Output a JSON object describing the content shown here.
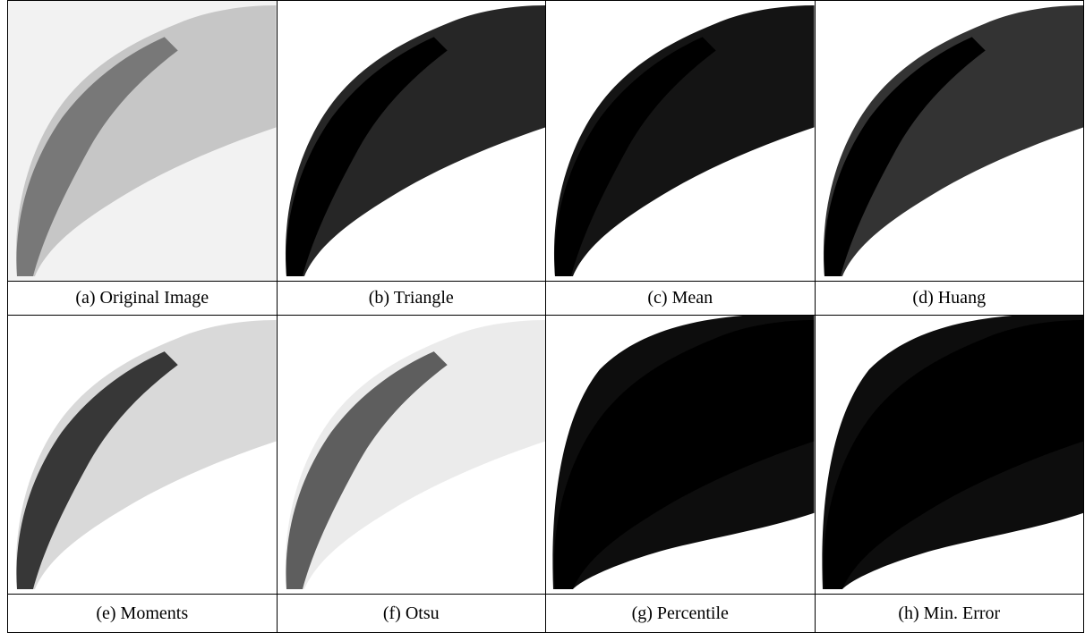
{
  "panels": [
    {
      "caption": "(a) Original Image"
    },
    {
      "caption": "(b) Triangle"
    },
    {
      "caption": "(c) Mean"
    },
    {
      "caption": "(d) Huang"
    },
    {
      "caption": "(e) Moments"
    },
    {
      "caption": "(f) Otsu"
    },
    {
      "caption": "(g) Percentile"
    },
    {
      "caption": "(h) Min. Error"
    }
  ]
}
